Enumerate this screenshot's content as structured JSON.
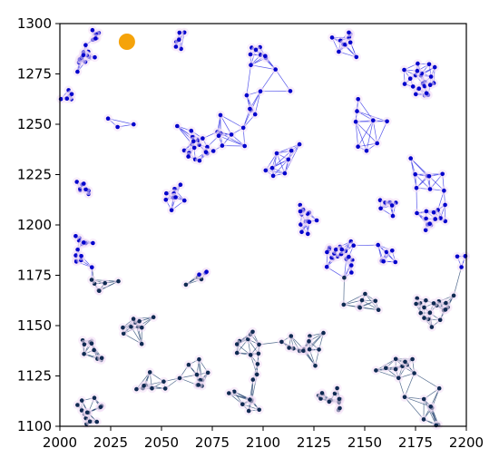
{
  "chart_data": {
    "type": "scatter",
    "title": "",
    "xlabel": "",
    "ylabel": "",
    "xlim": [
      2000,
      2200
    ],
    "ylim": [
      1100,
      1300
    ],
    "x_ticks": [
      2000,
      2025,
      2050,
      2075,
      2100,
      2125,
      2150,
      2175,
      2200
    ],
    "y_ticks": [
      1100,
      1125,
      1150,
      1175,
      1200,
      1225,
      1250,
      1275,
      1300
    ],
    "x_tick_labels": [
      "2000",
      "2025",
      "2050",
      "2075",
      "2100",
      "2125",
      "2150",
      "2175",
      "2200"
    ],
    "y_tick_labels": [
      "1100",
      "1125",
      "1150",
      "1175",
      "1200",
      "1225",
      "1250",
      "1275",
      "1300"
    ],
    "grid": false,
    "legend": "none",
    "colors": {
      "upper_nodes": "#0000cc",
      "upper_edges": "#3a3ae8",
      "lower_nodes": "#0f2a52",
      "lower_edges": "#34517a",
      "highlight": "#f5a30a",
      "halo": "#f3dff5"
    },
    "highlight_point": {
      "x": 2033,
      "y": 1291
    },
    "clusters": [
      {
        "x": 2012,
        "y": 1283,
        "n": 14,
        "spread": 7
      },
      {
        "x": 2018,
        "y": 1292,
        "n": 6,
        "spread": 4
      },
      {
        "x": 2058,
        "y": 1292,
        "n": 6,
        "spread": 6
      },
      {
        "x": 2098,
        "y": 1286,
        "n": 8,
        "spread": 7
      },
      {
        "x": 2140,
        "y": 1290,
        "n": 11,
        "spread": 6
      },
      {
        "x": 2178,
        "y": 1272,
        "n": 24,
        "spread": 7
      },
      {
        "x": 2067,
        "y": 1240,
        "n": 20,
        "spread": 9
      },
      {
        "x": 2005,
        "y": 1262,
        "n": 6,
        "spread": 5
      },
      {
        "x": 2012,
        "y": 1215,
        "n": 8,
        "spread": 5
      },
      {
        "x": 2055,
        "y": 1215,
        "n": 10,
        "spread": 6
      },
      {
        "x": 2082,
        "y": 1250,
        "n": 8,
        "spread": 10
      },
      {
        "x": 2112,
        "y": 1230,
        "n": 8,
        "spread": 12
      },
      {
        "x": 2152,
        "y": 1255,
        "n": 8,
        "spread": 12
      },
      {
        "x": 2178,
        "y": 1225,
        "n": 8,
        "spread": 9
      },
      {
        "x": 2183,
        "y": 1204,
        "n": 14,
        "spread": 6
      },
      {
        "x": 2120,
        "y": 1203,
        "n": 14,
        "spread": 8
      },
      {
        "x": 2138,
        "y": 1186,
        "n": 22,
        "spread": 7
      },
      {
        "x": 2162,
        "y": 1210,
        "n": 8,
        "spread": 7
      },
      {
        "x": 2012,
        "y": 1188,
        "n": 14,
        "spread": 7
      },
      {
        "x": 2020,
        "y": 1170,
        "n": 6,
        "spread": 7
      },
      {
        "x": 2182,
        "y": 1158,
        "n": 20,
        "spread": 9
      },
      {
        "x": 2168,
        "y": 1130,
        "n": 10,
        "spread": 9
      },
      {
        "x": 2040,
        "y": 1150,
        "n": 10,
        "spread": 8
      },
      {
        "x": 2015,
        "y": 1138,
        "n": 10,
        "spread": 6
      },
      {
        "x": 2120,
        "y": 1140,
        "n": 14,
        "spread": 10
      },
      {
        "x": 2095,
        "y": 1140,
        "n": 10,
        "spread": 8
      },
      {
        "x": 2065,
        "y": 1125,
        "n": 10,
        "spread": 8
      },
      {
        "x": 2092,
        "y": 1115,
        "n": 10,
        "spread": 9
      },
      {
        "x": 2135,
        "y": 1112,
        "n": 14,
        "spread": 6
      },
      {
        "x": 2015,
        "y": 1108,
        "n": 14,
        "spread": 7
      },
      {
        "x": 2045,
        "y": 1120,
        "n": 8,
        "spread": 8
      },
      {
        "x": 2180,
        "y": 1110,
        "n": 8,
        "spread": 8
      },
      {
        "x": 2148,
        "y": 1160,
        "n": 8,
        "spread": 10
      },
      {
        "x": 2070,
        "y": 1175,
        "n": 6,
        "spread": 10
      },
      {
        "x": 2100,
        "y": 1265,
        "n": 6,
        "spread": 15
      },
      {
        "x": 2030,
        "y": 1245,
        "n": 3,
        "spread": 8
      },
      {
        "x": 2160,
        "y": 1185,
        "n": 6,
        "spread": 8
      },
      {
        "x": 2195,
        "y": 1185,
        "n": 4,
        "spread": 6
      }
    ]
  }
}
